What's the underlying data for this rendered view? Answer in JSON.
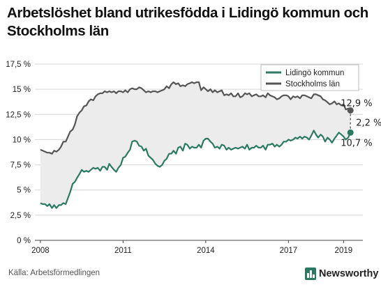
{
  "title_lines": [
    "Arbetslöshet bland utrikesfödda i Lidingö kommun och",
    "Stockholms län"
  ],
  "source": "Källa: Arbetsförmedlingen",
  "brand": "Newsworthy",
  "colors": {
    "lidingo": "#2a7a63",
    "stockholm": "#555555",
    "band": "#ececec",
    "grid": "#d6d6d6"
  },
  "chart_data": {
    "type": "line",
    "title": "Arbetslöshet bland utrikesfödda i Lidingö kommun och Stockholms län",
    "xlabel": "",
    "ylabel": "",
    "xlim": [
      2007.8,
      2019.7
    ],
    "ylim": [
      0,
      17.5
    ],
    "grid": true,
    "legend_position": "top-right",
    "x_ticks": [
      2008,
      2011,
      2014,
      2017,
      2019
    ],
    "x_tick_labels": [
      "2008",
      "2011",
      "2014",
      "2017",
      "2019"
    ],
    "y_ticks": [
      0,
      2.5,
      5,
      7.5,
      10,
      12.5,
      15,
      17.5
    ],
    "y_tick_labels": [
      "0 %",
      "2,5 %",
      "5 %",
      "7,5 %",
      "10 %",
      "12,5 %",
      "15 %",
      "17,5 %"
    ],
    "series": [
      {
        "name": "Lidingö kommun",
        "color": "#2a7a63",
        "x": [
          2008.0,
          2008.08,
          2008.17,
          2008.25,
          2008.33,
          2008.42,
          2008.5,
          2008.58,
          2008.67,
          2008.75,
          2008.83,
          2008.92,
          2009.0,
          2009.08,
          2009.17,
          2009.25,
          2009.33,
          2009.42,
          2009.5,
          2009.58,
          2009.67,
          2009.75,
          2009.83,
          2009.92,
          2010.0,
          2010.08,
          2010.17,
          2010.25,
          2010.33,
          2010.42,
          2010.5,
          2010.58,
          2010.67,
          2010.75,
          2010.83,
          2010.92,
          2011.0,
          2011.08,
          2011.17,
          2011.25,
          2011.33,
          2011.42,
          2011.5,
          2011.58,
          2011.67,
          2011.75,
          2011.83,
          2011.92,
          2012.0,
          2012.08,
          2012.17,
          2012.25,
          2012.33,
          2012.42,
          2012.5,
          2012.58,
          2012.67,
          2012.75,
          2012.83,
          2012.92,
          2013.0,
          2013.08,
          2013.17,
          2013.25,
          2013.33,
          2013.42,
          2013.5,
          2013.58,
          2013.67,
          2013.75,
          2013.83,
          2013.92,
          2014.0,
          2014.08,
          2014.17,
          2014.25,
          2014.33,
          2014.42,
          2014.5,
          2014.58,
          2014.67,
          2014.75,
          2014.83,
          2014.92,
          2015.0,
          2015.08,
          2015.17,
          2015.25,
          2015.33,
          2015.42,
          2015.5,
          2015.58,
          2015.67,
          2015.75,
          2015.83,
          2015.92,
          2016.0,
          2016.08,
          2016.17,
          2016.25,
          2016.33,
          2016.42,
          2016.5,
          2016.58,
          2016.67,
          2016.75,
          2016.83,
          2016.92,
          2017.0,
          2017.08,
          2017.17,
          2017.25,
          2017.33,
          2017.42,
          2017.5,
          2017.58,
          2017.67,
          2017.75,
          2017.83,
          2017.92,
          2018.0,
          2018.08,
          2018.17,
          2018.25,
          2018.33,
          2018.42,
          2018.5,
          2018.58,
          2018.67,
          2018.75,
          2018.83,
          2018.92,
          2019.0,
          2019.08,
          2019.17,
          2019.25
        ],
        "values": [
          3.7,
          3.6,
          3.6,
          3.4,
          3.6,
          3.2,
          3.5,
          3.2,
          3.5,
          3.5,
          3.7,
          3.6,
          4.2,
          4.8,
          5.6,
          5.8,
          6.2,
          6.6,
          7.0,
          6.8,
          6.9,
          6.8,
          7.0,
          7.2,
          7.1,
          7.2,
          6.9,
          7.3,
          7.3,
          7.0,
          7.6,
          7.3,
          7.0,
          6.8,
          7.2,
          7.5,
          8.2,
          8.3,
          8.7,
          9.0,
          9.8,
          9.9,
          9.8,
          9.4,
          9.3,
          8.9,
          9.1,
          8.4,
          8.2,
          8.0,
          7.6,
          7.4,
          7.3,
          7.5,
          7.9,
          8.1,
          8.6,
          8.6,
          8.9,
          8.6,
          9.2,
          9.3,
          8.9,
          9.6,
          9.5,
          9.1,
          9.3,
          9.2,
          9.2,
          9.5,
          9.2,
          9.9,
          10.1,
          10.1,
          9.8,
          9.6,
          9.2,
          9.3,
          9.1,
          9.5,
          9.4,
          9.0,
          9.2,
          9.0,
          9.1,
          9.2,
          9.1,
          9.2,
          9.3,
          9.1,
          9.5,
          9.0,
          9.2,
          9.2,
          9.4,
          9.2,
          9.2,
          9.4,
          9.0,
          9.5,
          9.5,
          9.6,
          9.3,
          9.5,
          9.3,
          9.5,
          9.8,
          9.8,
          10.0,
          9.9,
          10.0,
          10.2,
          10.1,
          10.3,
          10.1,
          10.3,
          10.2,
          10.0,
          10.4,
          10.9,
          10.5,
          10.2,
          10.5,
          10.3,
          9.8,
          10.2,
          10.0,
          9.7,
          10.1,
          10.4,
          10.7,
          10.5,
          10.3,
          10.0,
          10.2,
          10.7
        ]
      },
      {
        "name": "Stockholms län",
        "color": "#555555",
        "x": [
          2008.0,
          2008.08,
          2008.17,
          2008.25,
          2008.33,
          2008.42,
          2008.5,
          2008.58,
          2008.67,
          2008.75,
          2008.83,
          2008.92,
          2009.0,
          2009.08,
          2009.17,
          2009.25,
          2009.33,
          2009.42,
          2009.5,
          2009.58,
          2009.67,
          2009.75,
          2009.83,
          2009.92,
          2010.0,
          2010.08,
          2010.17,
          2010.25,
          2010.33,
          2010.42,
          2010.5,
          2010.58,
          2010.67,
          2010.75,
          2010.83,
          2010.92,
          2011.0,
          2011.08,
          2011.17,
          2011.25,
          2011.33,
          2011.42,
          2011.5,
          2011.58,
          2011.67,
          2011.75,
          2011.83,
          2011.92,
          2012.0,
          2012.08,
          2012.17,
          2012.25,
          2012.33,
          2012.42,
          2012.5,
          2012.58,
          2012.67,
          2012.75,
          2012.83,
          2012.92,
          2013.0,
          2013.08,
          2013.17,
          2013.25,
          2013.33,
          2013.42,
          2013.5,
          2013.58,
          2013.67,
          2013.75,
          2013.83,
          2013.92,
          2014.0,
          2014.08,
          2014.17,
          2014.25,
          2014.33,
          2014.42,
          2014.5,
          2014.58,
          2014.67,
          2014.75,
          2014.83,
          2014.92,
          2015.0,
          2015.08,
          2015.17,
          2015.25,
          2015.33,
          2015.42,
          2015.5,
          2015.58,
          2015.67,
          2015.75,
          2015.83,
          2015.92,
          2016.0,
          2016.08,
          2016.17,
          2016.25,
          2016.33,
          2016.42,
          2016.5,
          2016.58,
          2016.67,
          2016.75,
          2016.83,
          2016.92,
          2017.0,
          2017.08,
          2017.17,
          2017.25,
          2017.33,
          2017.42,
          2017.5,
          2017.58,
          2017.67,
          2017.75,
          2017.83,
          2017.92,
          2018.0,
          2018.08,
          2018.17,
          2018.25,
          2018.33,
          2018.42,
          2018.5,
          2018.58,
          2018.67,
          2018.75,
          2018.83,
          2018.92,
          2019.0,
          2019.08,
          2019.17,
          2019.25
        ],
        "values": [
          9.0,
          8.9,
          8.8,
          8.7,
          8.7,
          8.6,
          8.9,
          8.8,
          9.0,
          9.3,
          9.8,
          9.8,
          10.3,
          10.8,
          11.0,
          11.5,
          12.3,
          12.7,
          12.9,
          13.3,
          13.4,
          13.8,
          14.0,
          13.9,
          14.3,
          14.5,
          14.6,
          14.6,
          14.8,
          14.7,
          14.8,
          14.7,
          14.8,
          14.6,
          14.8,
          14.8,
          14.7,
          14.9,
          14.7,
          15.0,
          15.1,
          15.0,
          15.0,
          15.2,
          15.1,
          14.9,
          14.7,
          14.8,
          14.7,
          14.8,
          14.8,
          14.7,
          14.8,
          14.9,
          15.0,
          15.3,
          15.1,
          15.5,
          15.7,
          15.5,
          15.6,
          15.3,
          15.4,
          15.3,
          15.5,
          15.6,
          15.7,
          15.6,
          15.7,
          15.7,
          14.9,
          15.2,
          15.0,
          14.8,
          15.0,
          14.7,
          14.9,
          14.7,
          14.8,
          14.9,
          14.4,
          14.5,
          14.4,
          14.6,
          14.3,
          14.3,
          14.6,
          14.2,
          14.3,
          14.6,
          14.5,
          14.6,
          14.3,
          14.4,
          14.5,
          14.3,
          14.3,
          14.4,
          14.2,
          14.6,
          14.4,
          14.3,
          14.2,
          14.0,
          14.1,
          14.3,
          14.4,
          14.4,
          14.3,
          14.0,
          14.3,
          14.2,
          14.3,
          14.1,
          14.4,
          14.4,
          14.3,
          14.2,
          14.1,
          14.5,
          14.5,
          14.4,
          14.3,
          14.0,
          13.9,
          13.7,
          13.5,
          13.6,
          13.8,
          13.5,
          13.6,
          13.4,
          13.5,
          13.0,
          13.1,
          12.9
        ]
      }
    ],
    "annotations": [
      {
        "text": "12,9 %",
        "x": 2019.25,
        "y": 12.9
      },
      {
        "text": "2,2 %",
        "x": 2019.25,
        "y": 11.8
      },
      {
        "text": "10,7 %",
        "x": 2019.25,
        "y": 10.7
      }
    ]
  }
}
